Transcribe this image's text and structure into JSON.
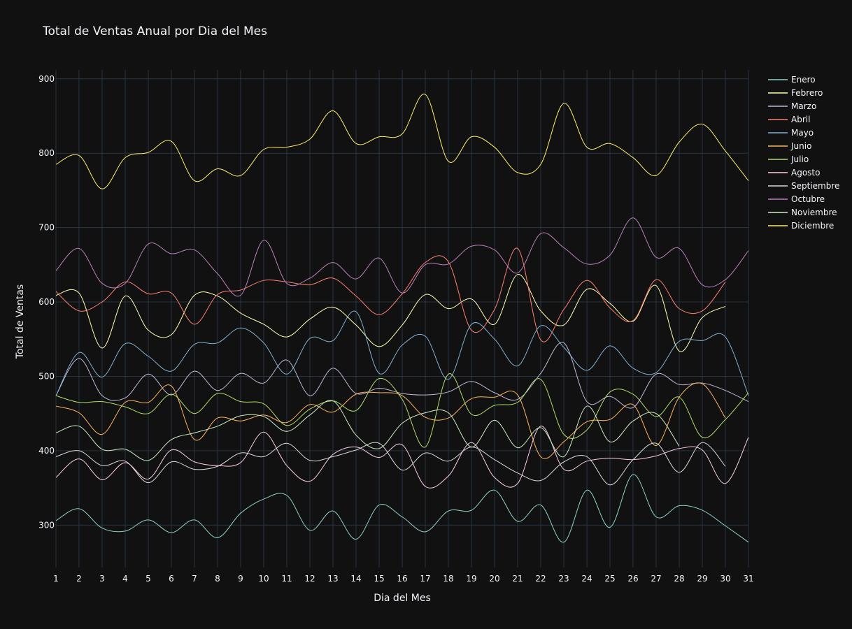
{
  "chart_data": {
    "type": "line",
    "title": "Total de Ventas Anual por Dia del Mes",
    "xlabel": "Dia del Mes",
    "ylabel": "Total de Ventas",
    "x": [
      1,
      2,
      3,
      4,
      5,
      6,
      7,
      8,
      9,
      10,
      11,
      12,
      13,
      14,
      15,
      16,
      17,
      18,
      19,
      20,
      21,
      22,
      23,
      24,
      25,
      26,
      27,
      28,
      29,
      30,
      31
    ],
    "x_ticks": [
      1,
      2,
      3,
      4,
      5,
      6,
      7,
      8,
      9,
      10,
      11,
      12,
      13,
      14,
      15,
      16,
      17,
      18,
      19,
      20,
      21,
      22,
      23,
      24,
      25,
      26,
      27,
      28,
      29,
      30,
      31
    ],
    "y_ticks": [
      300,
      400,
      500,
      600,
      700,
      800,
      900
    ],
    "xlim": [
      1,
      31
    ],
    "ylim": [
      243,
      912
    ],
    "grid": true,
    "legend_position": "right",
    "series": [
      {
        "name": "Enero",
        "color": "#8dd3c7",
        "values": [
          306,
          322,
          296,
          292,
          307,
          290,
          307,
          283,
          316,
          335,
          340,
          293,
          319,
          281,
          327,
          311,
          291,
          319,
          320,
          347,
          305,
          327,
          277,
          347,
          297,
          368,
          311,
          326,
          320,
          299,
          277
        ]
      },
      {
        "name": "Febrero",
        "color": "#ffffb3",
        "values": [
          609,
          612,
          538,
          608,
          562,
          556,
          609,
          608,
          585,
          570,
          553,
          577,
          593,
          569,
          540,
          569,
          610,
          591,
          604,
          570,
          637,
          588,
          569,
          617,
          598,
          574,
          622,
          534,
          579,
          594,
          null
        ]
      },
      {
        "name": "Marzo",
        "color": "#bebada",
        "values": [
          474,
          524,
          474,
          471,
          503,
          475,
          507,
          481,
          504,
          491,
          522,
          474,
          511,
          477,
          484,
          477,
          475,
          479,
          493,
          478,
          469,
          504,
          545,
          466,
          473,
          458,
          503,
          489,
          491,
          481,
          466
        ]
      },
      {
        "name": "Abril",
        "color": "#fb8072",
        "values": [
          614,
          588,
          600,
          627,
          611,
          612,
          570,
          610,
          616,
          629,
          627,
          623,
          632,
          608,
          583,
          611,
          653,
          654,
          562,
          590,
          672,
          549,
          590,
          629,
          592,
          575,
          630,
          591,
          588,
          627,
          null
        ]
      },
      {
        "name": "Mayo",
        "color": "#80b1d3",
        "values": [
          474,
          532,
          499,
          544,
          527,
          507,
          543,
          545,
          565,
          545,
          503,
          551,
          548,
          587,
          504,
          542,
          554,
          496,
          570,
          550,
          514,
          568,
          539,
          508,
          541,
          511,
          505,
          547,
          548,
          553,
          474
        ]
      },
      {
        "name": "Junio",
        "color": "#fdb462",
        "values": [
          460,
          451,
          422,
          465,
          465,
          487,
          415,
          444,
          440,
          448,
          438,
          462,
          452,
          476,
          478,
          474,
          445,
          444,
          470,
          472,
          475,
          392,
          412,
          439,
          442,
          462,
          407,
          472,
          490,
          444,
          null
        ]
      },
      {
        "name": "Julio",
        "color": "#b3de69",
        "values": [
          474,
          465,
          466,
          459,
          450,
          476,
          450,
          477,
          466,
          463,
          434,
          456,
          467,
          454,
          497,
          469,
          405,
          503,
          449,
          461,
          465,
          496,
          422,
          428,
          479,
          476,
          446,
          472,
          418,
          442,
          478
        ]
      },
      {
        "name": "Agosto",
        "color": "#fccde5",
        "values": [
          364,
          389,
          361,
          384,
          362,
          401,
          385,
          380,
          384,
          425,
          380,
          359,
          395,
          405,
          391,
          408,
          352,
          366,
          411,
          364,
          356,
          433,
          375,
          386,
          390,
          388,
          393,
          403,
          401,
          356,
          418
        ]
      },
      {
        "name": "Septiembre",
        "color": "#d9d9d9",
        "values": [
          392,
          400,
          380,
          386,
          357,
          385,
          375,
          379,
          397,
          392,
          410,
          387,
          392,
          401,
          410,
          374,
          397,
          386,
          405,
          388,
          370,
          360,
          385,
          392,
          354,
          388,
          410,
          371,
          411,
          379,
          null
        ]
      },
      {
        "name": "Octubre",
        "color": "#bc80bd",
        "values": [
          642,
          672,
          625,
          625,
          678,
          665,
          670,
          638,
          609,
          683,
          625,
          632,
          653,
          631,
          659,
          612,
          650,
          651,
          675,
          670,
          639,
          692,
          673,
          651,
          663,
          713,
          660,
          672,
          623,
          630,
          669
        ]
      },
      {
        "name": "Noviembre",
        "color": "#ccebc5",
        "values": [
          424,
          433,
          402,
          402,
          387,
          415,
          424,
          433,
          447,
          446,
          426,
          448,
          467,
          421,
          403,
          437,
          451,
          451,
          405,
          441,
          404,
          431,
          392,
          460,
          412,
          440,
          450,
          406,
          null,
          null,
          null
        ]
      },
      {
        "name": "Diciembre",
        "color": "#ffed6f",
        "values": [
          785,
          797,
          752,
          794,
          801,
          816,
          763,
          779,
          770,
          805,
          808,
          819,
          857,
          813,
          822,
          826,
          879,
          789,
          822,
          808,
          774,
          785,
          867,
          808,
          813,
          794,
          770,
          815,
          839,
          803,
          763
        ]
      }
    ]
  }
}
